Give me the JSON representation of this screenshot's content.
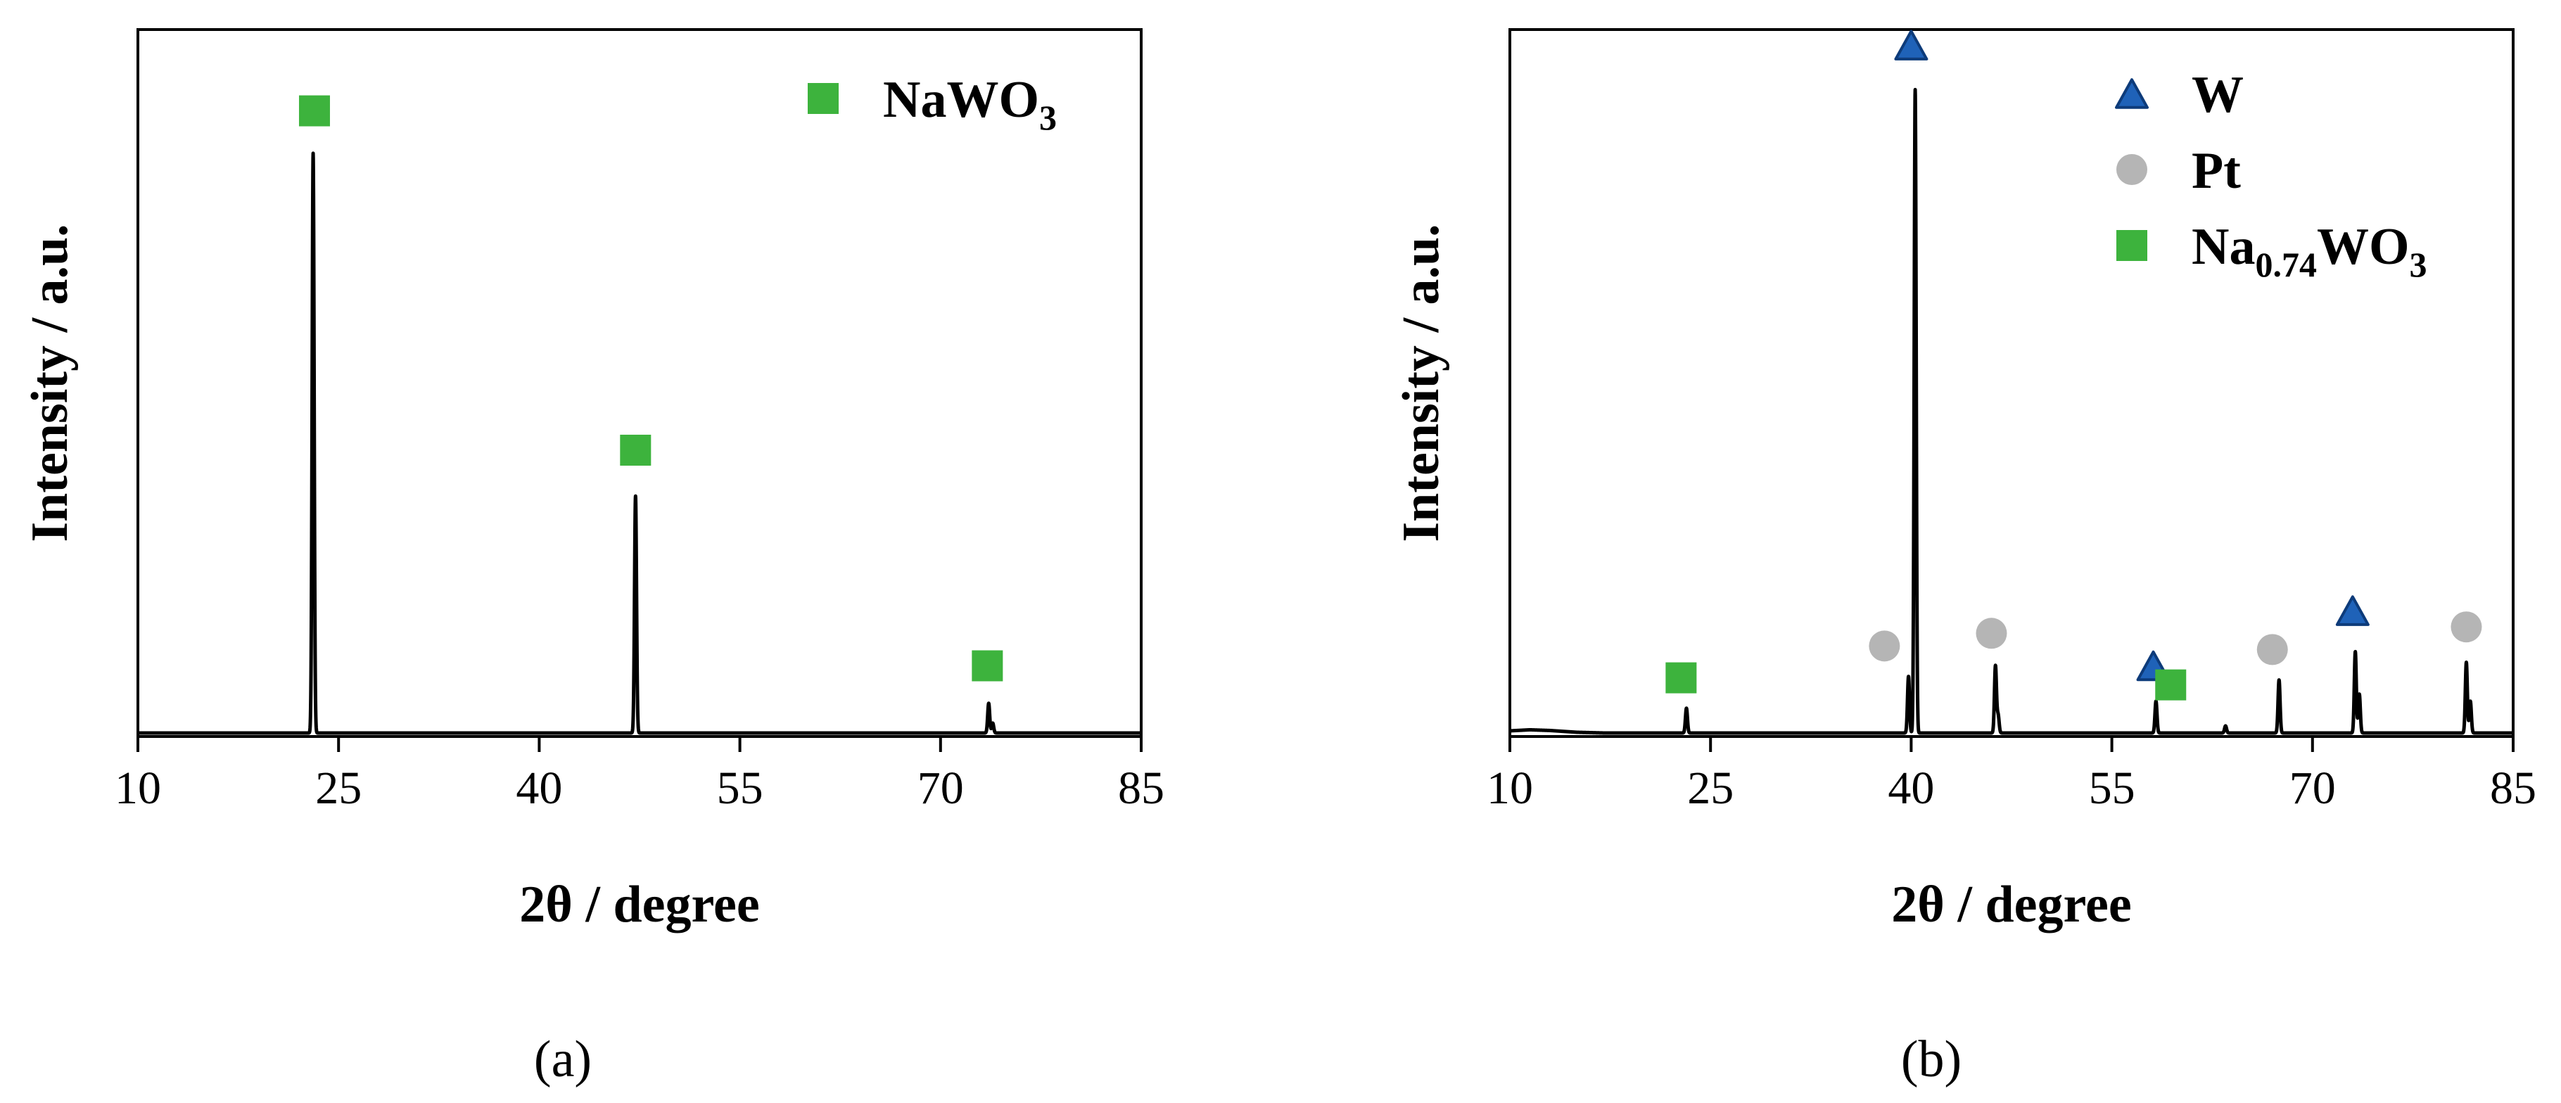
{
  "chart_data": [
    {
      "type": "line",
      "panel_label": "(a)",
      "xlabel": "2θ / degree",
      "ylabel": "Intensity / a.u.",
      "xlim": [
        10,
        85
      ],
      "ylim": [
        0,
        100
      ],
      "xticks": [
        10,
        25,
        40,
        55,
        70,
        85
      ],
      "yticks_shown": false,
      "grid": false,
      "legend": {
        "placement": "top-right",
        "entries": [
          {
            "marker": "square",
            "color": "#3db33d",
            "name_parts": [
              {
                "t": "NaWO"
              },
              {
                "t": "3",
                "sub": true
              }
            ]
          }
        ]
      },
      "series": [
        {
          "color": "#000000",
          "baseline": 0.5,
          "points": [
            [
              10,
              0.5
            ],
            [
              85,
              0.5
            ]
          ],
          "peaks": [
            {
              "x": 23.1,
              "height": 82
            },
            {
              "x": 47.2,
              "height": 33.5
            },
            {
              "x": 73.6,
              "height": 4.2
            },
            {
              "x": 73.9,
              "height": 1.4
            }
          ]
        }
      ],
      "markers": [
        {
          "type": "square",
          "color": "#3db33d",
          "x": 23.2,
          "y": 88.5
        },
        {
          "type": "square",
          "color": "#3db33d",
          "x": 47.2,
          "y": 40.5
        },
        {
          "type": "square",
          "color": "#3db33d",
          "x": 73.5,
          "y": 10
        }
      ]
    },
    {
      "type": "line",
      "panel_label": "(b)",
      "xlabel": "2θ / degree",
      "ylabel": "Intensity / a.u.",
      "xlim": [
        10,
        85
      ],
      "ylim": [
        0,
        100
      ],
      "xticks": [
        10,
        25,
        40,
        55,
        70,
        85
      ],
      "yticks_shown": false,
      "grid": false,
      "legend": {
        "placement": "top-right",
        "entries": [
          {
            "marker": "triangle",
            "color": "#1f62b8",
            "name_parts": [
              {
                "t": "W"
              }
            ]
          },
          {
            "marker": "circle",
            "color": "#b5b5b5",
            "name_parts": [
              {
                "t": "Pt"
              }
            ]
          },
          {
            "marker": "square",
            "color": "#3db33d",
            "name_parts": [
              {
                "t": "Na"
              },
              {
                "t": "0.74",
                "sub": true
              },
              {
                "t": "WO"
              },
              {
                "t": "3",
                "sub": true
              }
            ]
          }
        ]
      },
      "series": [
        {
          "color": "#000000",
          "baseline": 0.5,
          "points": [
            [
              10,
              0.8
            ],
            [
              11.5,
              0.95
            ],
            [
              13,
              0.85
            ],
            [
              15,
              0.6
            ],
            [
              17,
              0.5
            ],
            [
              85,
              0.5
            ]
          ],
          "peaks": [
            {
              "x": 23.2,
              "height": 3.5
            },
            {
              "x": 39.8,
              "height": 8.0
            },
            {
              "x": 40.3,
              "height": 91
            },
            {
              "x": 46.3,
              "height": 9.5
            },
            {
              "x": 46.5,
              "height": 2.5
            },
            {
              "x": 58.3,
              "height": 4.5
            },
            {
              "x": 63.5,
              "height": 1.0
            },
            {
              "x": 67.5,
              "height": 7.5
            },
            {
              "x": 73.2,
              "height": 11.5
            },
            {
              "x": 73.5,
              "height": 5.5
            },
            {
              "x": 81.5,
              "height": 10.0
            },
            {
              "x": 81.8,
              "height": 4.5
            }
          ]
        }
      ],
      "markers": [
        {
          "type": "triangle",
          "color": "#1f62b8",
          "x": 40.0,
          "y": 97.8
        },
        {
          "type": "triangle",
          "color": "#1f62b8",
          "x": 58.1,
          "y": 10.0
        },
        {
          "type": "triangle",
          "color": "#1f62b8",
          "x": 73.0,
          "y": 17.8
        },
        {
          "type": "circle",
          "color": "#b5b5b5",
          "x": 38.0,
          "y": 12.8
        },
        {
          "type": "circle",
          "color": "#b5b5b5",
          "x": 46.0,
          "y": 14.6
        },
        {
          "type": "circle",
          "color": "#b5b5b5",
          "x": 67.0,
          "y": 12.3
        },
        {
          "type": "circle",
          "color": "#b5b5b5",
          "x": 81.5,
          "y": 15.5
        },
        {
          "type": "square",
          "color": "#3db33d",
          "x": 22.8,
          "y": 8.3
        },
        {
          "type": "square",
          "color": "#3db33d",
          "x": 59.4,
          "y": 7.3
        }
      ]
    }
  ]
}
